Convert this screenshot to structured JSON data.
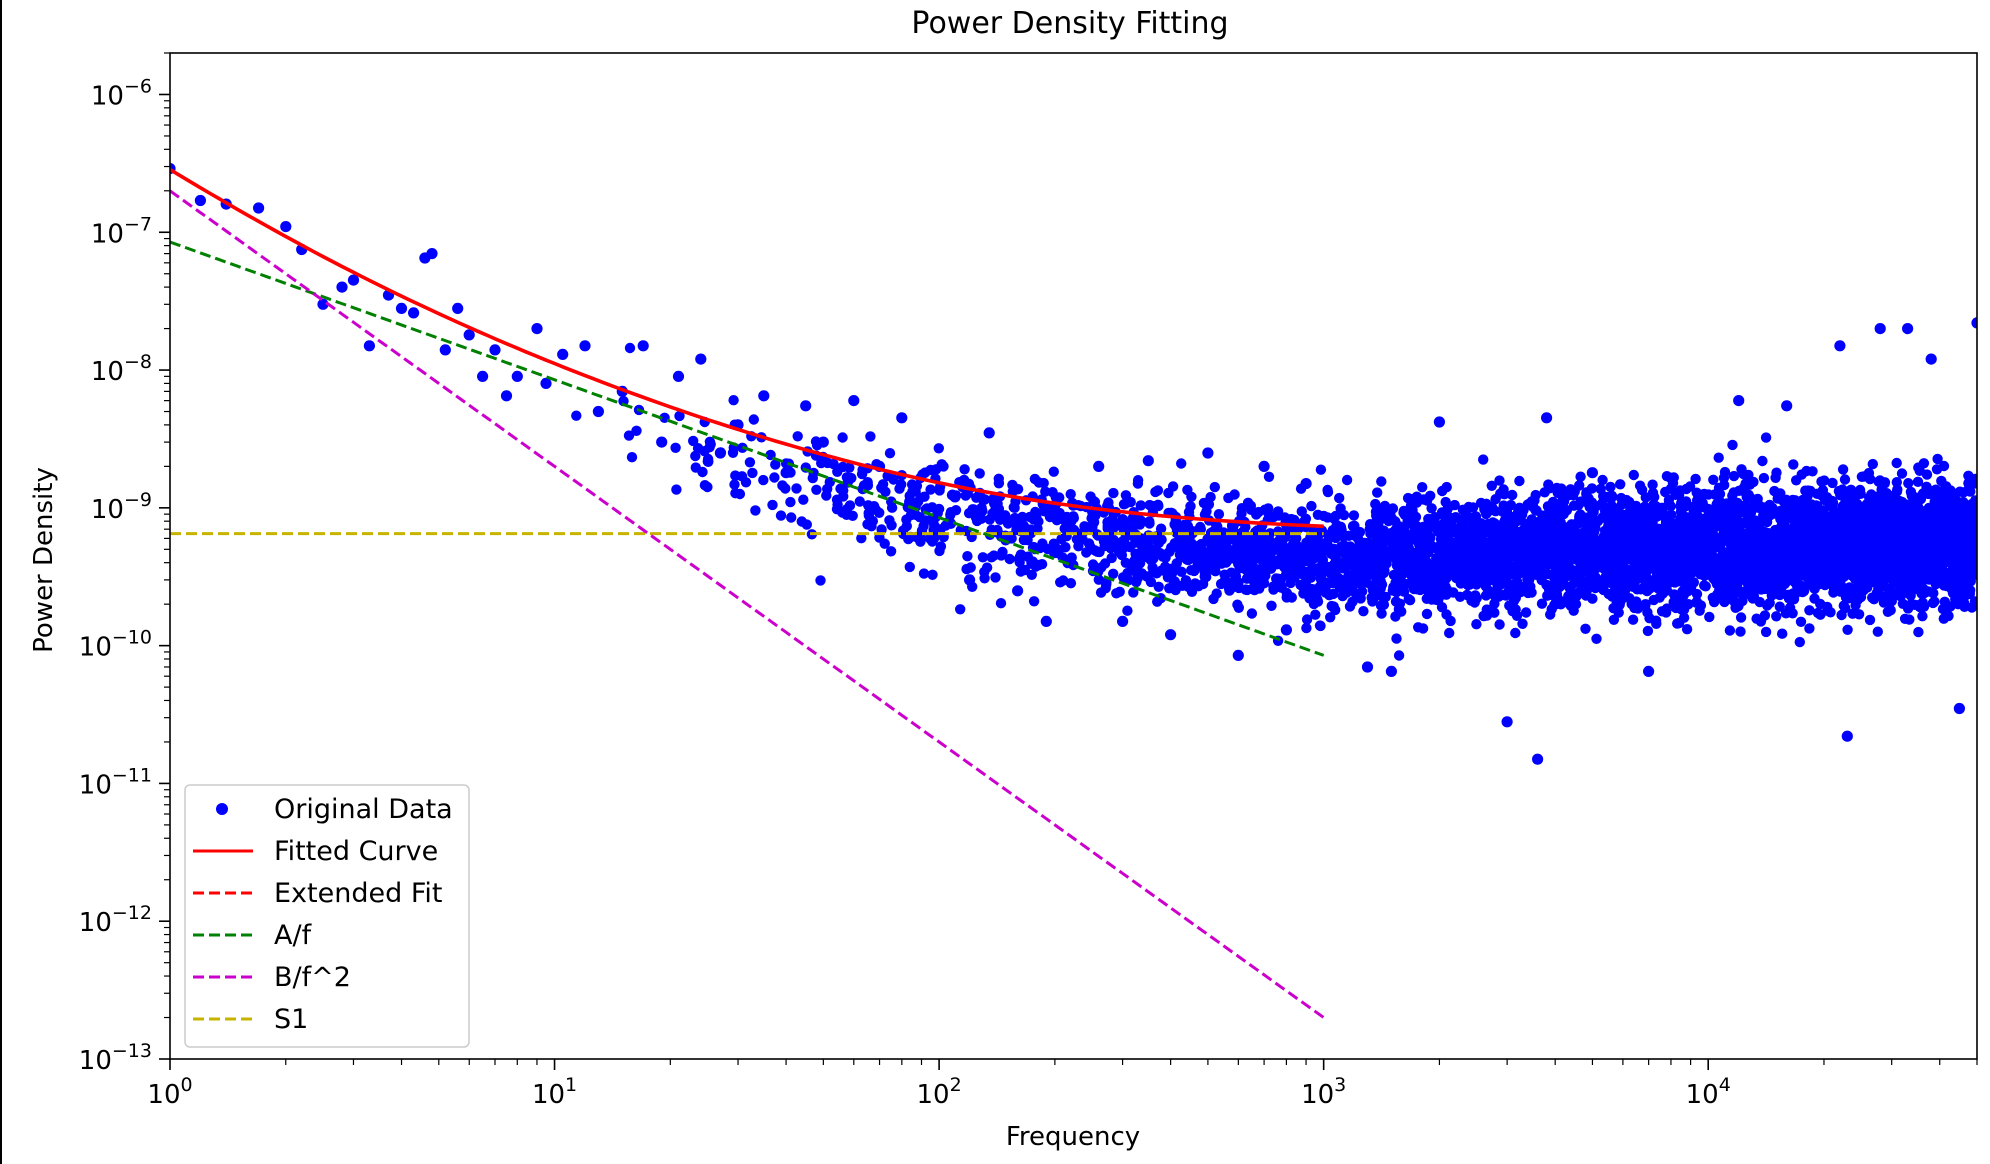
{
  "chart_data": {
    "type": "scatter",
    "title": "Power Density Fitting",
    "xlabel": "Frequency",
    "ylabel": "Power Density",
    "xscale": "log",
    "yscale": "log",
    "xlim": [
      1,
      50000
    ],
    "ylim": [
      1e-13,
      2e-06
    ],
    "grid": false,
    "legend_position": "lower-left",
    "x_ticks": [
      {
        "value": 1,
        "base": "10",
        "exp": "0"
      },
      {
        "value": 10,
        "base": "10",
        "exp": "1"
      },
      {
        "value": 100,
        "base": "10",
        "exp": "2"
      },
      {
        "value": 1000,
        "base": "10",
        "exp": "3"
      },
      {
        "value": 10000,
        "base": "10",
        "exp": "4"
      }
    ],
    "y_ticks": [
      {
        "value": 1e-06,
        "base": "10",
        "exp": "−6"
      },
      {
        "value": 1e-07,
        "base": "10",
        "exp": "−7"
      },
      {
        "value": 1e-08,
        "base": "10",
        "exp": "−8"
      },
      {
        "value": 1e-09,
        "base": "10",
        "exp": "−9"
      },
      {
        "value": 1e-10,
        "base": "10",
        "exp": "−10"
      },
      {
        "value": 1e-11,
        "base": "10",
        "exp": "−11"
      },
      {
        "value": 1e-12,
        "base": "10",
        "exp": "−12"
      },
      {
        "value": 1e-13,
        "base": "10",
        "exp": "−13"
      }
    ],
    "series": [
      {
        "name": "Original Data",
        "kind": "scatter",
        "color": "#0000ff",
        "points": [
          [
            1.0,
            2.9e-07
          ],
          [
            1.2,
            1.7e-07
          ],
          [
            1.4,
            1.6e-07
          ],
          [
            1.7,
            1.5e-07
          ],
          [
            2.0,
            1.1e-07
          ],
          [
            2.2,
            7.5e-08
          ],
          [
            2.5,
            3e-08
          ],
          [
            2.8,
            4e-08
          ],
          [
            3.0,
            4.5e-08
          ],
          [
            3.3,
            1.5e-08
          ],
          [
            3.7,
            3.5e-08
          ],
          [
            4.0,
            2.8e-08
          ],
          [
            4.3,
            2.6e-08
          ],
          [
            4.6,
            6.5e-08
          ],
          [
            4.8,
            7e-08
          ],
          [
            5.2,
            1.4e-08
          ],
          [
            5.6,
            2.8e-08
          ],
          [
            6.0,
            1.8e-08
          ],
          [
            6.5,
            9e-09
          ],
          [
            7.0,
            1.4e-08
          ],
          [
            7.5,
            6.5e-09
          ],
          [
            8.0,
            9e-09
          ],
          [
            9.0,
            2e-08
          ],
          [
            9.5,
            8e-09
          ],
          [
            10.5,
            1.3e-08
          ],
          [
            12,
            1.5e-08
          ],
          [
            13,
            5e-09
          ],
          [
            15,
            7e-09
          ],
          [
            17,
            1.5e-08
          ],
          [
            19,
            3e-09
          ],
          [
            21,
            9e-09
          ],
          [
            24,
            1.2e-08
          ],
          [
            27,
            2.5e-09
          ],
          [
            30,
            4e-09
          ],
          [
            35,
            6.5e-09
          ],
          [
            40,
            1.8e-09
          ],
          [
            45,
            5.5e-09
          ],
          [
            50,
            3e-09
          ],
          [
            60,
            6e-09
          ],
          [
            70,
            2e-09
          ],
          [
            80,
            4.5e-09
          ],
          [
            95,
            6e-10
          ],
          [
            110,
            1.2e-09
          ],
          [
            120,
            3e-10
          ],
          [
            135,
            3.5e-09
          ],
          [
            160,
            2.5e-10
          ],
          [
            190,
            1.5e-10
          ],
          [
            220,
            8e-10
          ],
          [
            260,
            2e-09
          ],
          [
            300,
            1.5e-10
          ],
          [
            350,
            2.2e-09
          ],
          [
            400,
            1.2e-10
          ],
          [
            500,
            2.5e-09
          ],
          [
            600,
            8.5e-11
          ],
          [
            700,
            2e-09
          ],
          [
            800,
            1.3e-10
          ],
          [
            900,
            1.5e-09
          ],
          [
            1300,
            7e-11
          ],
          [
            1500,
            6.5e-11
          ],
          [
            2000,
            4.2e-09
          ],
          [
            3000,
            2.8e-11
          ],
          [
            3600,
            1.5e-11
          ],
          [
            3800,
            4.5e-09
          ],
          [
            5000,
            1.8e-09
          ],
          [
            7000,
            6.5e-11
          ],
          [
            12000,
            6e-09
          ],
          [
            16000,
            5.5e-09
          ],
          [
            22000,
            1.5e-08
          ],
          [
            23000,
            2.2e-11
          ],
          [
            28000,
            2e-08
          ],
          [
            33000,
            2e-08
          ],
          [
            38000,
            1.2e-08
          ],
          [
            45000,
            3.5e-11
          ],
          [
            50000,
            2.2e-08
          ]
        ]
      },
      {
        "name": "Fitted Curve",
        "kind": "line",
        "color": "#ff0000",
        "dash": "solid",
        "formula": "A/f + B/f^2 + S1",
        "params": {
          "A": 8.5e-08,
          "B": 2e-07,
          "S1": 6.5e-10
        },
        "x_range": [
          1,
          1000
        ]
      },
      {
        "name": "Extended Fit",
        "kind": "line",
        "color": "#ff0000",
        "dash": "dashed",
        "formula": "none",
        "x_range": []
      },
      {
        "name": "A/f",
        "kind": "line",
        "color": "#008000",
        "dash": "dashed",
        "formula": "A/f",
        "params": {
          "A": 8.5e-08
        },
        "x_range": [
          1,
          1000
        ]
      },
      {
        "name": "B/f^2",
        "kind": "line",
        "color": "#cc00cc",
        "dash": "dashed",
        "formula": "B/f^2",
        "params": {
          "B": 2e-07
        },
        "x_range": [
          1,
          1000
        ]
      },
      {
        "name": "S1",
        "kind": "line",
        "color": "#c8b400",
        "dash": "dashed",
        "formula": "S1",
        "params": {
          "S1": 6.5e-10
        },
        "x_range": [
          1,
          1000
        ]
      }
    ]
  }
}
